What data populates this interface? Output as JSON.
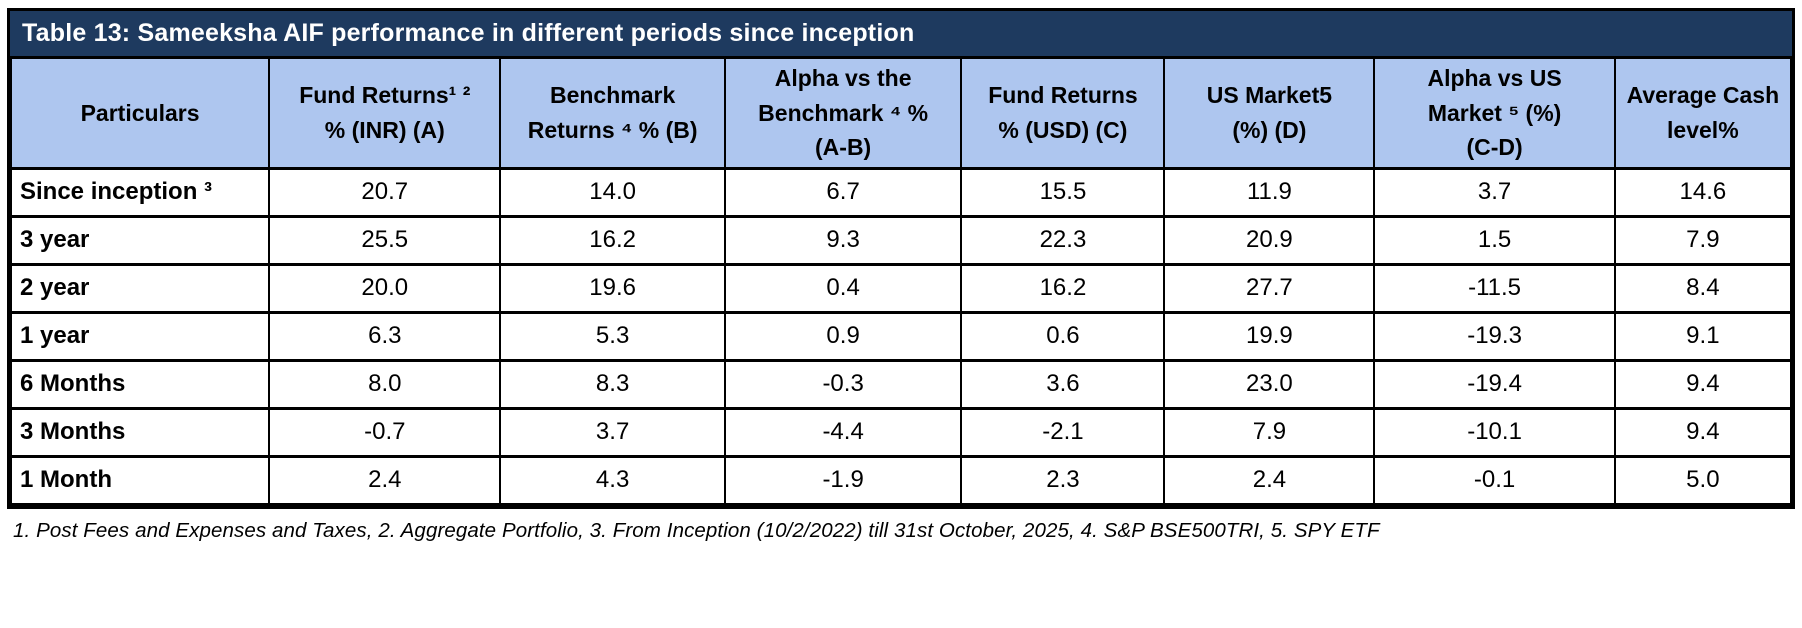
{
  "title_bar": {
    "text": "Table 13: Sameeksha AIF performance in different periods since inception",
    "bg_color": "#1e3a5f",
    "text_color": "#ffffff"
  },
  "table": {
    "header_bg_color": "#aec6ef",
    "border_color": "#000000",
    "columns": [
      {
        "id": "particulars",
        "label": "Particulars"
      },
      {
        "id": "fund-returns-inr",
        "label": "Fund Returns¹ ²\n% (INR) (A)"
      },
      {
        "id": "benchmark-returns",
        "label": "Benchmark\nReturns ⁴ % (B)"
      },
      {
        "id": "alpha-vs-benchmark",
        "label": "Alpha vs the\nBenchmark ⁴ %\n(A-B)"
      },
      {
        "id": "fund-returns-usd",
        "label": "Fund Returns\n% (USD) (C)"
      },
      {
        "id": "us-market",
        "label": "US Market5\n(%) (D)"
      },
      {
        "id": "alpha-vs-us-market",
        "label": "Alpha vs US\nMarket ⁵ (%)\n(C-D)"
      },
      {
        "id": "average-cash-level",
        "label": "Average Cash\nlevel%"
      }
    ],
    "rows": [
      {
        "label": "Since inception ³",
        "values": [
          "20.7",
          "14.0",
          "6.7",
          "15.5",
          "11.9",
          "3.7",
          "14.6"
        ]
      },
      {
        "label": "3 year",
        "values": [
          "25.5",
          "16.2",
          "9.3",
          "22.3",
          "20.9",
          "1.5",
          "7.9"
        ]
      },
      {
        "label": "2 year",
        "values": [
          "20.0",
          "19.6",
          "0.4",
          "16.2",
          "27.7",
          "-11.5",
          "8.4"
        ]
      },
      {
        "label": "1 year",
        "values": [
          "6.3",
          "5.3",
          "0.9",
          "0.6",
          "19.9",
          "-19.3",
          "9.1"
        ]
      },
      {
        "label": "6 Months",
        "values": [
          "8.0",
          "8.3",
          "-0.3",
          "3.6",
          "23.0",
          "-19.4",
          "9.4"
        ]
      },
      {
        "label": "3 Months",
        "values": [
          "-0.7",
          "3.7",
          "-4.4",
          "-2.1",
          "7.9",
          "-10.1",
          "9.4"
        ]
      },
      {
        "label": "1 Month",
        "values": [
          "2.4",
          "4.3",
          "-1.9",
          "2.3",
          "2.4",
          "-0.1",
          "5.0"
        ]
      }
    ]
  },
  "footnote": "1. Post Fees and Expenses and Taxes, 2. Aggregate Portfolio, 3. From Inception (10/2/2022) till 31st October, 2025,  4. S&P BSE500TRI,  5. SPY ETF"
}
